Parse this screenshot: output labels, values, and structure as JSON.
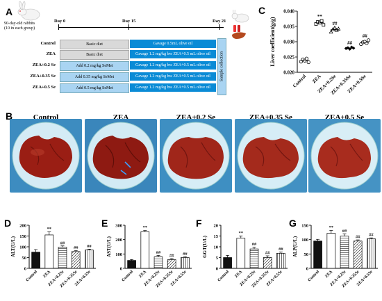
{
  "panelA": {
    "letter": "A",
    "intro": "90-day-old rabbits\n(10 in each group)",
    "days": [
      "Day 0",
      "Day 15",
      "Day 21"
    ],
    "sample_collection": "Sample collection",
    "groups": [
      {
        "name": "Control",
        "phase1": "Basic diet",
        "phase2": "Gavage 0.5mL olive oil"
      },
      {
        "name": "ZEA",
        "phase1": "Basic diet",
        "phase2": "Gavage 1.2 mg/kg bw ZEA+0.5 mL olive oil"
      },
      {
        "name": "ZEA+0.2 Se",
        "phase1": "Add 0.2 mg/kg SeMet",
        "phase2": "Gavage 1.2 mg/kg bw ZEA+0.5 mL olive oil"
      },
      {
        "name": "ZEA+0.35 Se",
        "phase1": "Add 0.35 mg/kg SeMet",
        "phase2": "Gavage 1.2 mg/kg bw ZEA+0.5 mL olive oil"
      },
      {
        "name": "ZEA+0.5 Se",
        "phase1": "Add 0.5 mg/kg SeMet",
        "phase2": "Gavage 1.2 mg/kg bw ZEA+0.5 mL olive oil"
      }
    ]
  },
  "panelB": {
    "letter": "B",
    "titles": [
      "Control",
      "ZEA",
      "ZEA+0.2 Se",
      "ZEA+0.35 Se",
      "ZEA+0.5 Se"
    ]
  },
  "chart_data": [
    {
      "panel": "C",
      "type": "scatter",
      "ylabel": "Liver coefficient(g/g)",
      "ylim": [
        0.02,
        0.04
      ],
      "yticks": [
        "0.020",
        "0.025",
        "0.030",
        "0.035",
        "0.040"
      ],
      "categories": [
        "Control",
        "ZEA",
        "ZEA+0.2Se",
        "ZEA+0.35Se",
        "ZEA+0.5Se"
      ],
      "markers": [
        "circle",
        "square",
        "triangle",
        "diamond",
        "hexagon"
      ],
      "points": [
        [
          0.0235,
          0.0242,
          0.0238,
          0.0245,
          0.0233
        ],
        [
          0.0358,
          0.0365,
          0.0362,
          0.0368,
          0.0355
        ],
        [
          0.0332,
          0.034,
          0.0345,
          0.0338,
          0.0342
        ],
        [
          0.0278,
          0.028,
          0.0276,
          0.0282,
          0.0279
        ],
        [
          0.0292,
          0.0298,
          0.03,
          0.0295,
          0.0305
        ]
      ],
      "significance": [
        "",
        "**",
        "##",
        "##",
        "##"
      ]
    },
    {
      "panel": "D",
      "type": "bar",
      "ylabel": "ALT(U/L)",
      "ylim": [
        0,
        200
      ],
      "yticks": [
        "0",
        "50",
        "100",
        "150",
        "200"
      ],
      "categories": [
        "Control",
        "ZEA",
        "ZEA+0.2Se",
        "ZEA+0.35Se",
        "ZEA+0.5Se"
      ],
      "values": [
        75,
        155,
        98,
        78,
        85
      ],
      "errors": [
        12,
        14,
        6,
        4,
        4
      ],
      "significance": [
        "",
        "**",
        "##",
        "##",
        "##"
      ]
    },
    {
      "panel": "E",
      "type": "bar",
      "ylabel": "AST(U/L)",
      "ylim": [
        0,
        300
      ],
      "yticks": [
        "0",
        "100",
        "200",
        "300"
      ],
      "categories": [
        "Control",
        "ZEA",
        "ZEA+0.2Se",
        "ZEA+0.35Se",
        "ZEA+0.5Se"
      ],
      "values": [
        55,
        255,
        80,
        60,
        75
      ],
      "errors": [
        6,
        8,
        10,
        8,
        6
      ],
      "significance": [
        "",
        "**",
        "##",
        "##",
        "##"
      ]
    },
    {
      "panel": "F",
      "type": "bar",
      "ylabel": "GGT(U/L)",
      "ylim": [
        0,
        20
      ],
      "yticks": [
        "0",
        "5",
        "10",
        "15",
        "20"
      ],
      "categories": [
        "Control",
        "ZEA",
        "ZEA+0.2Se",
        "ZEA+0.35Se",
        "ZEA+0.5Se"
      ],
      "values": [
        5,
        14,
        9,
        5,
        7
      ],
      "errors": [
        1,
        1,
        0.8,
        0.8,
        0.6
      ],
      "significance": [
        "",
        "**",
        "##",
        "##",
        "##"
      ]
    },
    {
      "panel": "G",
      "type": "bar",
      "ylabel": "ALP(U/L)",
      "ylim": [
        0,
        150
      ],
      "yticks": [
        "0",
        "50",
        "100",
        "150"
      ],
      "categories": [
        "Control",
        "ZEA",
        "ZEA+0.2Se",
        "ZEA+0.35Se",
        "ZEA+0.5Se"
      ],
      "values": [
        95,
        122,
        112,
        95,
        103
      ],
      "errors": [
        6,
        10,
        8,
        4,
        3
      ],
      "significance": [
        "",
        "**",
        "##",
        "##",
        "##"
      ]
    }
  ]
}
